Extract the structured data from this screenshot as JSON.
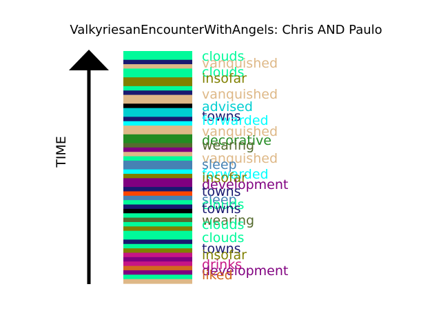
{
  "chart_data": {
    "type": "bar",
    "title": "ValkyriesanEncounterWithAngels: Chris AND Paulo",
    "ylabel": "TIME",
    "description_of_axes": "",
    "stripes": [
      {
        "color": "#00fa9a"
      },
      {
        "color": "#00fa9a"
      },
      {
        "color": "#191970"
      },
      {
        "color": "#deb887"
      },
      {
        "color": "#00fa9a"
      },
      {
        "color": "#00fa9a"
      },
      {
        "color": "#808000"
      },
      {
        "color": "#808000"
      },
      {
        "color": "#00fa9a"
      },
      {
        "color": "#191970"
      },
      {
        "color": "#deb887"
      },
      {
        "color": "#deb887"
      },
      {
        "color": "#000000"
      },
      {
        "color": "#00ced1"
      },
      {
        "color": "#00ced1"
      },
      {
        "color": "#191970"
      },
      {
        "color": "#00ffff"
      },
      {
        "color": "#deb887"
      },
      {
        "color": "#deb887"
      },
      {
        "color": "#228b22"
      },
      {
        "color": "#228b22"
      },
      {
        "color": "#556b2f"
      },
      {
        "color": "#800080"
      },
      {
        "color": "#deb887"
      },
      {
        "color": "#00fa9a"
      },
      {
        "color": "#4682b4"
      },
      {
        "color": "#4682b4"
      },
      {
        "color": "#00ffff"
      },
      {
        "color": "#808000"
      },
      {
        "color": "#800080"
      },
      {
        "color": "#800080"
      },
      {
        "color": "#191970"
      },
      {
        "color": "#ff4500"
      },
      {
        "color": "#4682b4"
      },
      {
        "color": "#00fa9a"
      },
      {
        "color": "#191970"
      },
      {
        "color": "#000000"
      },
      {
        "color": "#00fa9a"
      },
      {
        "color": "#556b2f"
      },
      {
        "color": "#00fa9a"
      },
      {
        "color": "#808000"
      },
      {
        "color": "#00fa9a"
      },
      {
        "color": "#00fa9a"
      },
      {
        "color": "#191970"
      },
      {
        "color": "#00fa9a"
      },
      {
        "color": "#808000"
      },
      {
        "color": "#c71585"
      },
      {
        "color": "#800080"
      },
      {
        "color": "#c71585"
      },
      {
        "color": "#d2691e"
      },
      {
        "color": "#800080"
      },
      {
        "color": "#00fa9a"
      },
      {
        "color": "#deb887"
      }
    ],
    "labels": [
      {
        "text": "clouds",
        "color": "#00fa9a"
      },
      {
        "text": "vanquished",
        "color": "#deb887"
      },
      {
        "text": "clouds",
        "color": "#00fa9a"
      },
      {
        "text": "insofar",
        "color": "#808000"
      },
      {
        "text": "vanquished",
        "color": "#deb887"
      },
      {
        "text": "advised",
        "color": "#00ced1"
      },
      {
        "text": "towns",
        "color": "#191970"
      },
      {
        "text": "forwarded",
        "color": "#00ffff"
      },
      {
        "text": "vanquished",
        "color": "#deb887"
      },
      {
        "text": "decorative",
        "color": "#228b22"
      },
      {
        "text": "wearing",
        "color": "#556b2f"
      },
      {
        "text": "vanquished",
        "color": "#deb887"
      },
      {
        "text": "sleep",
        "color": "#4682b4"
      },
      {
        "text": "forwarded",
        "color": "#00ffff"
      },
      {
        "text": "insofar",
        "color": "#808000"
      },
      {
        "text": "development",
        "color": "#800080"
      },
      {
        "text": "towns",
        "color": "#191970"
      },
      {
        "text": "sleep",
        "color": "#4682b4"
      },
      {
        "text": "clouds",
        "color": "#00fa9a"
      },
      {
        "text": "towns",
        "color": "#191970"
      },
      {
        "text": "wearing",
        "color": "#556b2f"
      },
      {
        "text": "clouds",
        "color": "#00fa9a"
      },
      {
        "text": "clouds",
        "color": "#00fa9a"
      },
      {
        "text": "towns",
        "color": "#191970"
      },
      {
        "text": "insofar",
        "color": "#808000"
      },
      {
        "text": "drinks",
        "color": "#c71585"
      },
      {
        "text": "development",
        "color": "#800080"
      },
      {
        "text": "liked",
        "color": "#d2691e"
      }
    ]
  }
}
